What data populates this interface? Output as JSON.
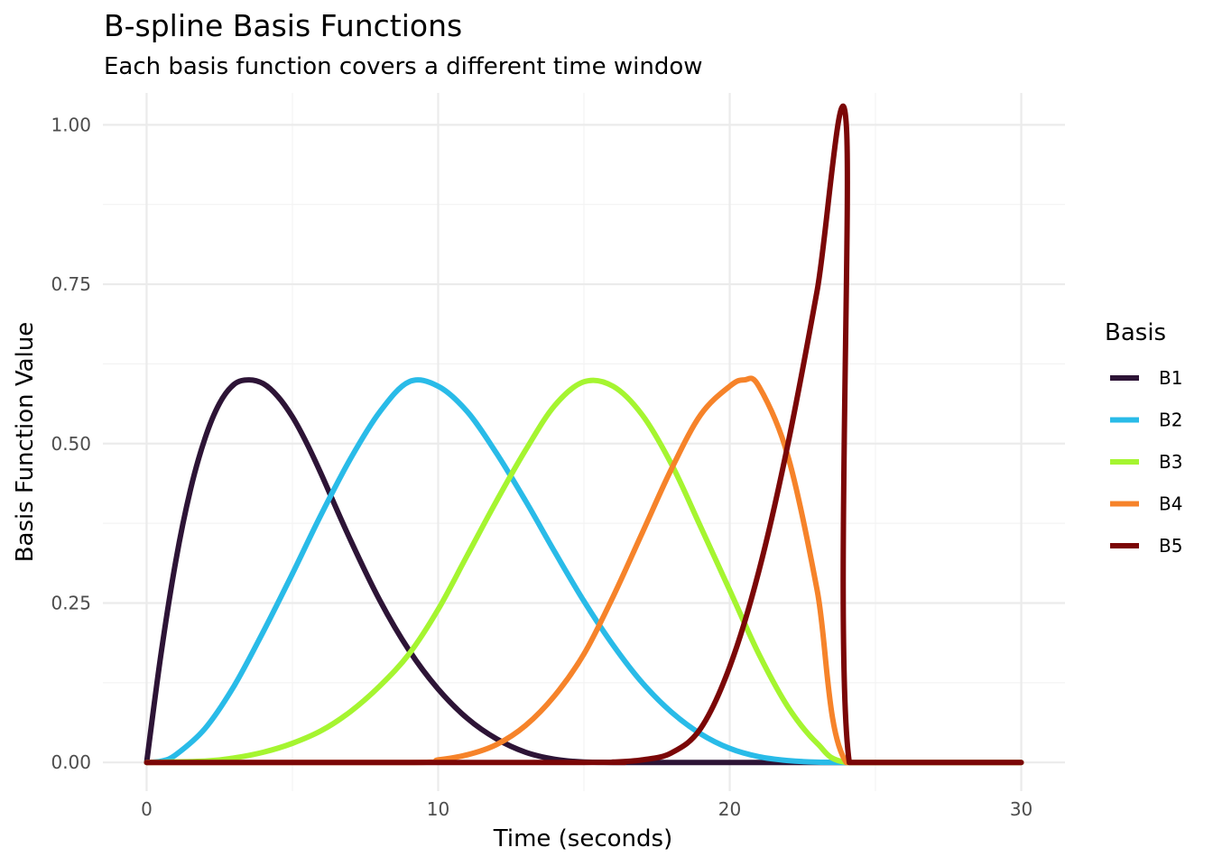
{
  "chart_data": {
    "type": "line",
    "title": "B-spline Basis Functions",
    "subtitle": "Each basis function covers a different time window",
    "xlabel": "Time (seconds)",
    "ylabel": "Basis Function Value",
    "xlim": [
      -1.5,
      31.5
    ],
    "ylim": [
      -0.045,
      1.05
    ],
    "x_ticks": [
      0,
      10,
      20,
      30
    ],
    "x_tick_labels": [
      "0",
      "10",
      "20",
      "30"
    ],
    "y_ticks": [
      0,
      0.25,
      0.5,
      0.75,
      1.0
    ],
    "y_tick_labels": [
      "0.00",
      "0.25",
      "0.50",
      "0.75",
      "1.00"
    ],
    "grid": true,
    "legend": {
      "title": "Basis",
      "position": "right"
    },
    "series": [
      {
        "name": "B1",
        "color": "#2d1436",
        "x": [
          0,
          0.5,
          1,
          1.5,
          2,
          2.5,
          3,
          3.5,
          4,
          4.5,
          5,
          5.5,
          6,
          7,
          8,
          9,
          10,
          11,
          12,
          13,
          14,
          15,
          16,
          18,
          20,
          22,
          24,
          27,
          30
        ],
        "y": [
          0,
          0.172,
          0.316,
          0.427,
          0.508,
          0.563,
          0.593,
          0.6,
          0.594,
          0.574,
          0.542,
          0.5,
          0.451,
          0.348,
          0.254,
          0.176,
          0.115,
          0.069,
          0.037,
          0.016,
          0.005,
          0.0006,
          0,
          0,
          0,
          0,
          0,
          0,
          0
        ]
      },
      {
        "name": "B2",
        "color": "#29bbe8",
        "x": [
          0,
          0.5,
          1,
          2,
          3,
          4,
          5,
          6,
          7,
          8,
          9,
          10,
          11,
          12,
          13,
          14,
          15,
          16,
          17,
          18,
          19,
          20,
          21,
          22,
          23,
          24,
          27,
          30
        ],
        "y": [
          0,
          0.002,
          0.012,
          0.053,
          0.12,
          0.205,
          0.296,
          0.39,
          0.477,
          0.55,
          0.597,
          0.59,
          0.55,
          0.485,
          0.41,
          0.33,
          0.253,
          0.184,
          0.125,
          0.079,
          0.045,
          0.022,
          0.009,
          0.003,
          0.0004,
          0,
          0,
          0
        ]
      },
      {
        "name": "B3",
        "color": "#a5f530",
        "x": [
          0,
          2,
          3,
          4,
          5,
          6,
          7,
          8,
          9,
          10,
          11,
          12,
          13,
          14,
          15,
          16,
          17,
          18,
          19,
          20,
          21,
          22,
          23,
          24,
          27,
          30
        ],
        "y": [
          0,
          0.002,
          0.007,
          0.016,
          0.03,
          0.05,
          0.08,
          0.12,
          0.17,
          0.24,
          0.325,
          0.41,
          0.49,
          0.56,
          0.597,
          0.59,
          0.545,
          0.468,
          0.37,
          0.27,
          0.17,
          0.087,
          0.03,
          0,
          0,
          0
        ]
      },
      {
        "name": "B4",
        "color": "#f6832a",
        "x": [
          0,
          9,
          10,
          11,
          12,
          13,
          14,
          15,
          16,
          17,
          18,
          19,
          20,
          20.5,
          21,
          22,
          23,
          24,
          27,
          30
        ],
        "y": [
          0,
          0,
          0.004,
          0.012,
          0.028,
          0.058,
          0.105,
          0.17,
          0.26,
          0.36,
          0.46,
          0.545,
          0.59,
          0.6,
          0.59,
          0.48,
          0.27,
          0,
          0,
          0
        ]
      },
      {
        "name": "B5",
        "color": "#7b0707",
        "x": [
          0,
          15,
          16,
          17,
          18,
          19,
          20,
          21,
          22,
          23,
          24,
          24.1,
          27,
          30
        ],
        "y": [
          0,
          0,
          0.0005,
          0.004,
          0.015,
          0.053,
          0.15,
          0.3,
          0.5,
          0.74,
          1.0,
          0,
          0,
          0
        ]
      }
    ]
  }
}
